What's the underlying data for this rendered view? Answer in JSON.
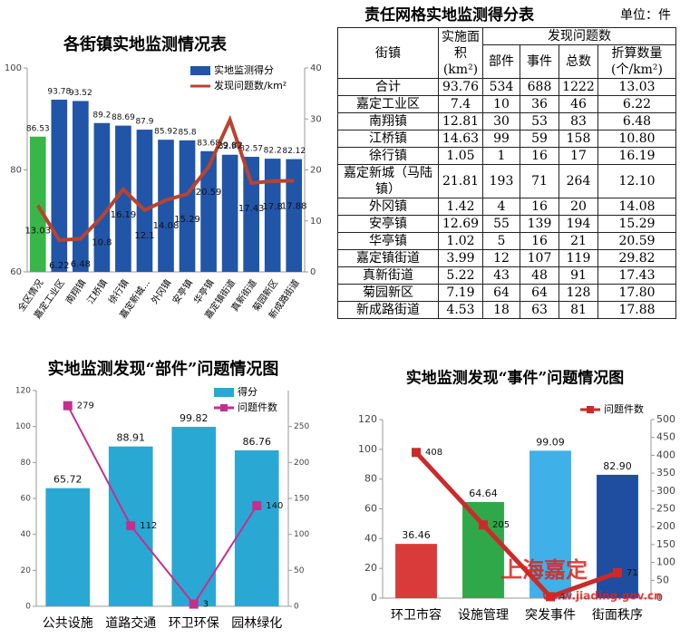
{
  "chart_data": [
    {
      "type": "bar_line",
      "title": "各街镇实地监测情况表",
      "categories": [
        "全区情况",
        "嘉定工业区",
        "南翔镇",
        "江桥镇",
        "徐行镇",
        "嘉定新城...",
        "外冈镇",
        "安亭镇",
        "华亭镇",
        "嘉定镇街道",
        "真新街道",
        "菊园新区",
        "新成路街道"
      ],
      "series": [
        {
          "name": "实地监测得分",
          "color": "#2155a8",
          "colors": [
            "#39b54a",
            "#2155a8",
            "#2155a8",
            "#2155a8",
            "#2155a8",
            "#2155a8",
            "#2155a8",
            "#2155a8",
            "#2155a8",
            "#2155a8",
            "#2155a8",
            "#2155a8",
            "#2155a8"
          ],
          "values": [
            86.53,
            93.78,
            93.52,
            89.2,
            88.69,
            87.9,
            85.92,
            85.8,
            83.68,
            82.98,
            82.57,
            82.2,
            82.12
          ]
        },
        {
          "name": "发现问题数/km²",
          "color": "#b9432e",
          "axis": "y2",
          "values": [
            13.03,
            6.22,
            6.48,
            10.8,
            16.19,
            12.1,
            14.08,
            15.29,
            20.59,
            29.82,
            17.43,
            17.8,
            17.88
          ]
        }
      ],
      "ylim": [
        60,
        100
      ],
      "yticks": [
        60,
        80,
        100
      ],
      "y2lim": [
        0,
        40
      ],
      "y2ticks": [
        0,
        10,
        20,
        30,
        40
      ]
    },
    {
      "type": "bar_line",
      "title": "实地监测发现“部件”问题情况图",
      "categories": [
        "公共设施",
        "道路交通",
        "环卫环保",
        "园林绿化"
      ],
      "series": [
        {
          "name": "得分",
          "color": "#29a8d4",
          "values": [
            65.72,
            88.91,
            99.82,
            86.76
          ]
        },
        {
          "name": "问题件数",
          "color": "#c2308f",
          "axis": "y2",
          "values": [
            279,
            112,
            3,
            140
          ]
        }
      ],
      "ylim": [
        0,
        120
      ],
      "yticks": [
        0,
        20,
        40,
        60,
        80,
        100,
        120
      ],
      "y2lim": [
        0,
        300
      ],
      "y2ticks": [
        0,
        50,
        100,
        150,
        200,
        250
      ]
    },
    {
      "type": "bar_line",
      "title": "实地监测发现“事件”问题情况图",
      "categories": [
        "环卫市容",
        "设施管理",
        "突发事件",
        "街面秩序"
      ],
      "series": [
        {
          "colors": [
            "#d93a3a",
            "#2fa84a",
            "#3fb1e8",
            "#1f4ea0"
          ],
          "values": [
            36.46,
            64.64,
            99.09,
            82.9
          ],
          "value_labels": [
            "36.46",
            "64.64",
            "99.09",
            "82.90"
          ]
        },
        {
          "name": "问题件数",
          "color": "#cc2a2a",
          "axis": "y2",
          "values": [
            408,
            205,
            4,
            71
          ]
        }
      ],
      "ylim": [
        0,
        120
      ],
      "yticks": [
        0,
        20,
        40,
        60,
        80,
        100,
        120
      ],
      "y2lim": [
        0,
        500
      ],
      "y2ticks": [
        0,
        50,
        100,
        150,
        200,
        250,
        300,
        350,
        400,
        450,
        500
      ],
      "watermark": "上海嘉定",
      "watermark_url": "www.jiading.gov.cn"
    }
  ],
  "table": {
    "title": "责任网格实地监测得分表",
    "unit": "单位：件",
    "header": {
      "town": "街镇",
      "area": "实施面积(km²)",
      "found": "发现问题数",
      "parts": "部件",
      "events": "事件",
      "total": "总数",
      "converted": "折算数量(个/km²)"
    },
    "rows": [
      [
        "合计",
        "93.76",
        "534",
        "688",
        "1222",
        "13.03"
      ],
      [
        "嘉定工业区",
        "7.4",
        "10",
        "36",
        "46",
        "6.22"
      ],
      [
        "南翔镇",
        "12.81",
        "30",
        "53",
        "83",
        "6.48"
      ],
      [
        "江桥镇",
        "14.63",
        "99",
        "59",
        "158",
        "10.80"
      ],
      [
        "徐行镇",
        "1.05",
        "1",
        "16",
        "17",
        "16.19"
      ],
      [
        "嘉定新城（马陆镇）",
        "21.81",
        "193",
        "71",
        "264",
        "12.10"
      ],
      [
        "外冈镇",
        "1.42",
        "4",
        "16",
        "20",
        "14.08"
      ],
      [
        "安亭镇",
        "12.69",
        "55",
        "139",
        "194",
        "15.29"
      ],
      [
        "华亭镇",
        "1.02",
        "5",
        "16",
        "21",
        "20.59"
      ],
      [
        "嘉定镇街道",
        "3.99",
        "12",
        "107",
        "119",
        "29.82"
      ],
      [
        "真新街道",
        "5.22",
        "43",
        "48",
        "91",
        "17.43"
      ],
      [
        "菊园新区",
        "7.19",
        "64",
        "64",
        "128",
        "17.80"
      ],
      [
        "新成路街道",
        "4.53",
        "18",
        "63",
        "81",
        "17.88"
      ]
    ]
  }
}
